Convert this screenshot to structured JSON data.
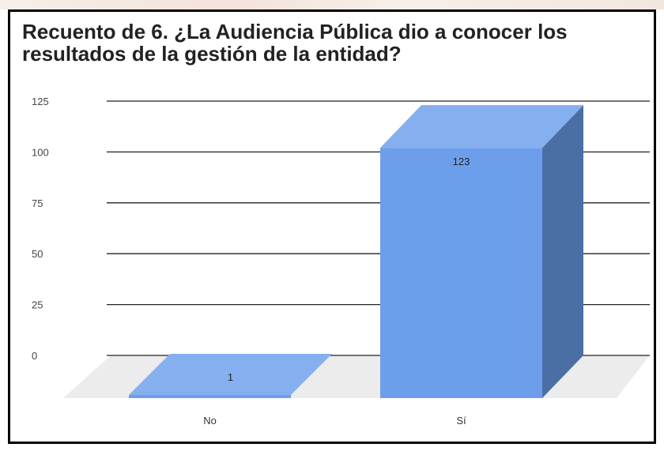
{
  "chart_data": {
    "type": "bar",
    "title": "Recuento de 6.  ¿La Audiencia Pública dio a conocer los resultados de la gestión de la entidad?",
    "categories": [
      "No",
      "Sí"
    ],
    "values": [
      1,
      123
    ],
    "data_labels": [
      "1",
      "123"
    ],
    "ylim": [
      0,
      125
    ],
    "yticks": [
      "0",
      "25",
      "50",
      "75",
      "100",
      "125"
    ],
    "grid": true,
    "style": "3d",
    "bar_color": "#6d9eeb",
    "bar_top_color": "#86aff0",
    "bar_side_color": "#4a6fa5"
  }
}
